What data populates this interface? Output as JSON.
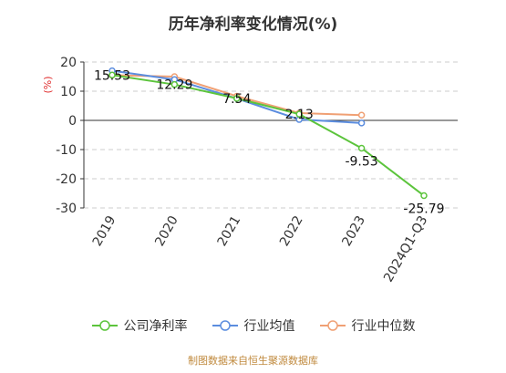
{
  "chart_data": {
    "type": "line",
    "title": "历年净利率变化情况(%)",
    "ylabel": "(%)",
    "categories": [
      "2019",
      "2020",
      "2021",
      "2022",
      "2023",
      "2024Q1-Q3"
    ],
    "ylim": [
      -30,
      20
    ],
    "yticks": [
      20,
      10,
      0,
      -10,
      -20,
      -30
    ],
    "grid": true,
    "legend_position": "bottom",
    "series": [
      {
        "name": "公司净利率",
        "color": "#5cc43c",
        "values": [
          15.53,
          12.29,
          7.54,
          2.13,
          -9.53,
          -25.79
        ],
        "labels": [
          "15.53",
          "12.29",
          "7.54",
          "2.13",
          "-9.53",
          "-25.79"
        ]
      },
      {
        "name": "行业均值",
        "color": "#5b8ddf",
        "values": [
          17.0,
          14.0,
          7.5,
          0.3,
          -0.9,
          null
        ]
      },
      {
        "name": "行业中位数",
        "color": "#f0a074",
        "values": [
          15.5,
          15.0,
          8.3,
          2.5,
          1.8,
          null
        ]
      }
    ]
  },
  "source_note": "制图数据来自恒生聚源数据库"
}
